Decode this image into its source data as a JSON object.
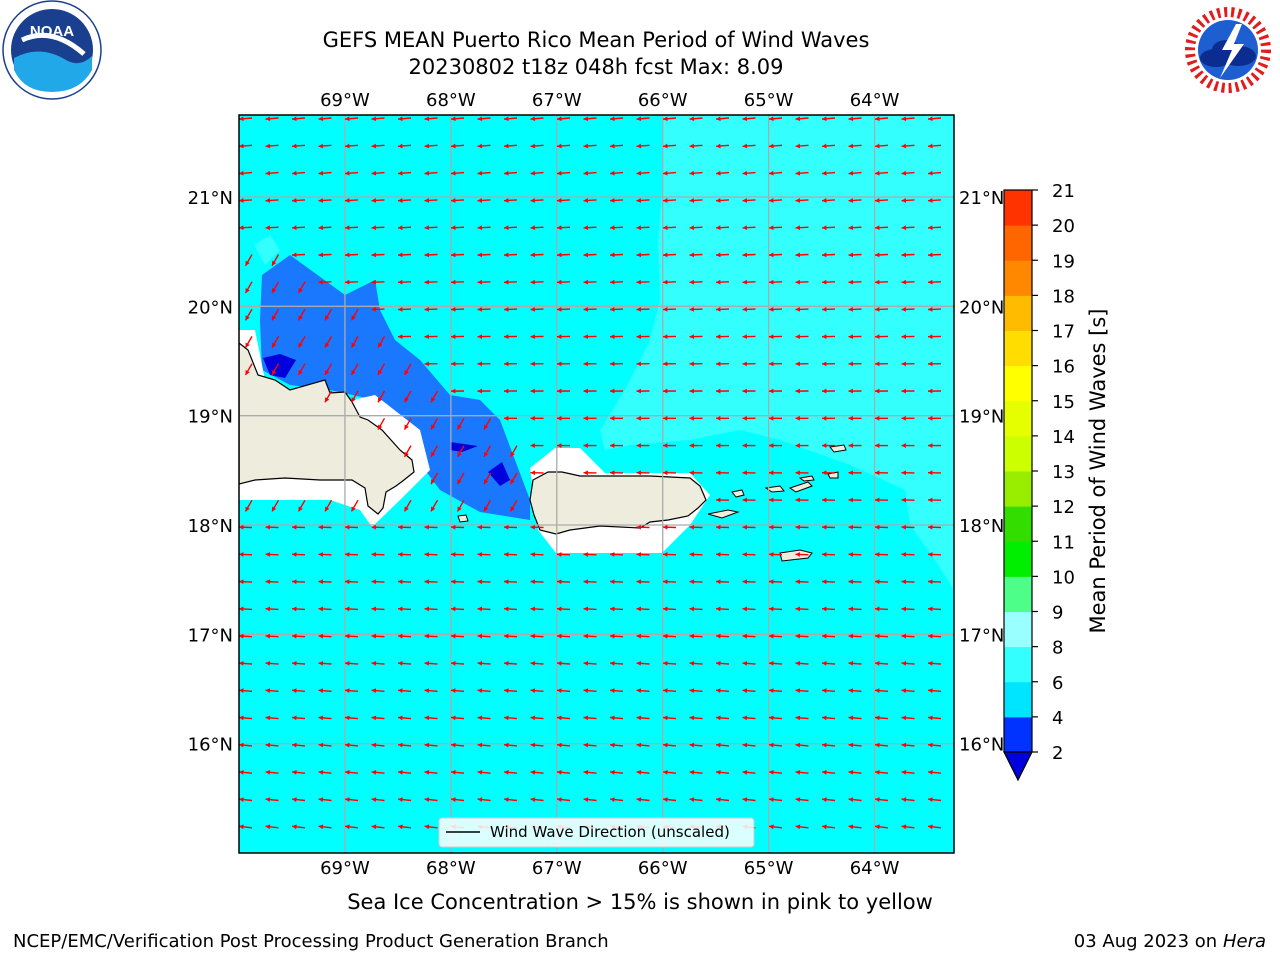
{
  "title": {
    "line1": "GEFS MEAN Puerto Rico Mean Period of Wind Waves",
    "line2": "20230802 t18z 048h fcst   Max: 8.09"
  },
  "map": {
    "region": "Puerto Rico",
    "lon_range": [
      -70.0,
      -63.25
    ],
    "lat_range": [
      15.0,
      21.75
    ],
    "lon_ticks": [
      "69°W",
      "68°W",
      "67°W",
      "66°W",
      "65°W",
      "64°W"
    ],
    "lat_ticks": [
      "16°N",
      "17°N",
      "18°N",
      "19°N",
      "20°N",
      "21°N"
    ],
    "ocean_color": "#00ffff",
    "land_color": "#eeecdc",
    "arrow_color": "#ff0000",
    "legend_label": "Wind Wave Direction (unscaled)"
  },
  "colorbar": {
    "label": "Mean Period of Wind Waves [s]",
    "levels": [
      "2",
      "4",
      "6",
      "8",
      "9",
      "10",
      "11",
      "12",
      "13",
      "14",
      "15",
      "16",
      "17",
      "18",
      "19",
      "20",
      "21"
    ],
    "colors": [
      "#0033ff",
      "#00e5ff",
      "#33ffff",
      "#99ffff",
      "#4dff88",
      "#00ee00",
      "#33dd00",
      "#99ee00",
      "#ccff00",
      "#e5ff00",
      "#ffff00",
      "#ffdd00",
      "#ffbb00",
      "#ff8800",
      "#ff6600",
      "#ff3300"
    ],
    "under_color": "#0000dd",
    "over_color": "#ff0000"
  },
  "caption": "Sea Ice Concentration > 15% is shown in pink to yellow",
  "footer": {
    "left": "NCEP/EMC/Verification Post Processing Product Generation Branch",
    "right_date": "03 Aug 2023 on",
    "right_host": "Hera"
  },
  "logos": {
    "noaa": "NOAA",
    "nws": "NATIONAL WEATHER SERVICE"
  }
}
